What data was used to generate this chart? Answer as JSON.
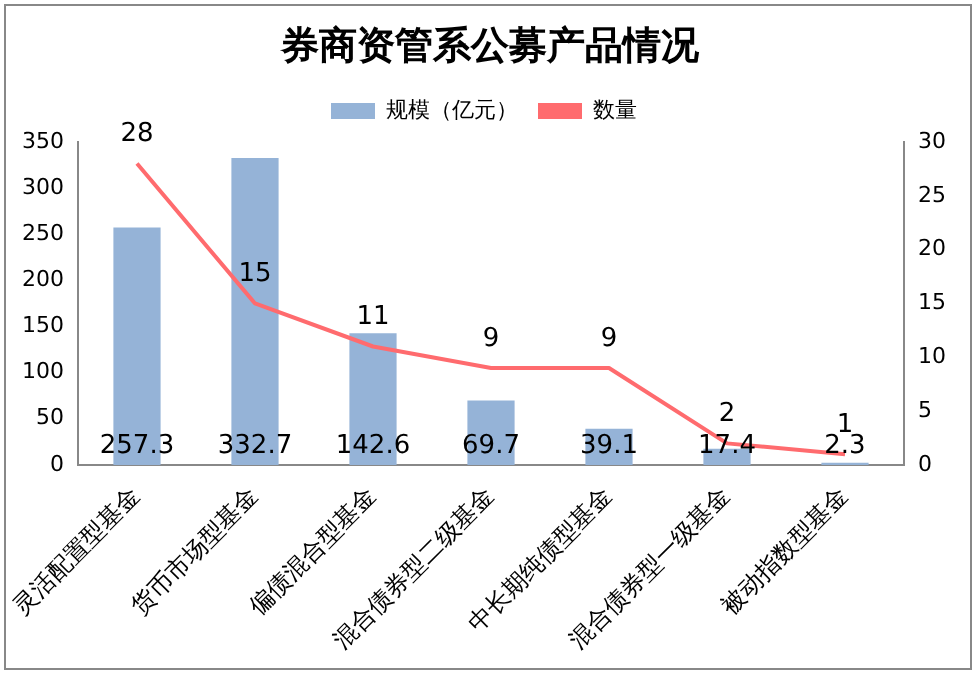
{
  "chart_data": {
    "type": "bar",
    "title": "券商资管系公募产品情况",
    "categories": [
      "灵活配置型基金",
      "货币市场型基金",
      "偏债混合型基金",
      "混合债券型二级基金",
      "中长期纯债型基金",
      "混合债券型一级基金",
      "被动指数型基金"
    ],
    "series": [
      {
        "name": "规模（亿元）",
        "color": "#95b3d7",
        "values": [
          257.3,
          332.7,
          142.6,
          69.7,
          39.1,
          17.4,
          2.3
        ]
      },
      {
        "name": "数量",
        "type": "line",
        "axis": "y2",
        "color": "#ff6b6e",
        "marker": "none",
        "values": [
          28,
          15,
          11,
          9,
          9,
          2,
          1
        ]
      }
    ],
    "ylim": [
      0,
      350
    ],
    "yticks": [
      0,
      50,
      100,
      150,
      200,
      250,
      300,
      350
    ],
    "y2lim": [
      0,
      30
    ],
    "y2ticks": [
      0,
      5,
      10,
      15,
      20,
      25,
      30
    ],
    "grid": false,
    "legend": "top",
    "data_labels": true
  }
}
